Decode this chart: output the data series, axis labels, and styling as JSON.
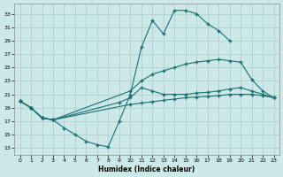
{
  "xlabel": "Humidex (Indice chaleur)",
  "xlim": [
    -0.5,
    23.5
  ],
  "ylim": [
    12.0,
    34.5
  ],
  "yticks": [
    13,
    15,
    17,
    19,
    21,
    23,
    25,
    27,
    29,
    31,
    33
  ],
  "xticks": [
    0,
    1,
    2,
    3,
    4,
    5,
    6,
    7,
    8,
    9,
    10,
    11,
    12,
    13,
    14,
    15,
    16,
    17,
    18,
    19,
    20,
    21,
    22,
    23
  ],
  "bg_color": "#cce8e8",
  "grid_color": "#aacccc",
  "line_color": "#1a7070",
  "line1_x": [
    0,
    1,
    2,
    3,
    4,
    5,
    6,
    7,
    8,
    9,
    10,
    11,
    12,
    13,
    14,
    15,
    16,
    17,
    18,
    19
  ],
  "line1_y": [
    20.0,
    19.0,
    17.5,
    17.2,
    16.0,
    15.0,
    14.0,
    13.5,
    13.2,
    17.0,
    21.0,
    28.0,
    32.0,
    30.0,
    33.5,
    33.5,
    33.0,
    31.5,
    30.5,
    29.0
  ],
  "line2_x": [
    0,
    1,
    2,
    3,
    10,
    11,
    12,
    13,
    14,
    15,
    16,
    17,
    18,
    19,
    20,
    21,
    22,
    23
  ],
  "line2_y": [
    20.0,
    19.0,
    17.5,
    17.2,
    21.5,
    23.0,
    24.0,
    24.5,
    25.0,
    25.5,
    25.8,
    26.0,
    26.2,
    26.0,
    25.8,
    23.2,
    21.5,
    20.5
  ],
  "line3_x": [
    0,
    1,
    2,
    3,
    10,
    11,
    12,
    13,
    14,
    15,
    16,
    17,
    18,
    19,
    20,
    21,
    22,
    23
  ],
  "line3_y": [
    20.0,
    19.0,
    17.5,
    17.2,
    19.5,
    19.7,
    19.9,
    20.1,
    20.3,
    20.5,
    20.6,
    20.7,
    20.8,
    21.0,
    21.0,
    21.0,
    20.8,
    20.5
  ],
  "line4_x": [
    0,
    1,
    2,
    3,
    9,
    10,
    11,
    12,
    13,
    14,
    15,
    16,
    17,
    18,
    19,
    20,
    21,
    22,
    23
  ],
  "line4_y": [
    20.0,
    19.0,
    17.5,
    17.2,
    19.8,
    20.5,
    22.0,
    21.5,
    21.0,
    21.0,
    21.0,
    21.2,
    21.3,
    21.5,
    21.8,
    22.0,
    21.5,
    21.0,
    20.5
  ]
}
